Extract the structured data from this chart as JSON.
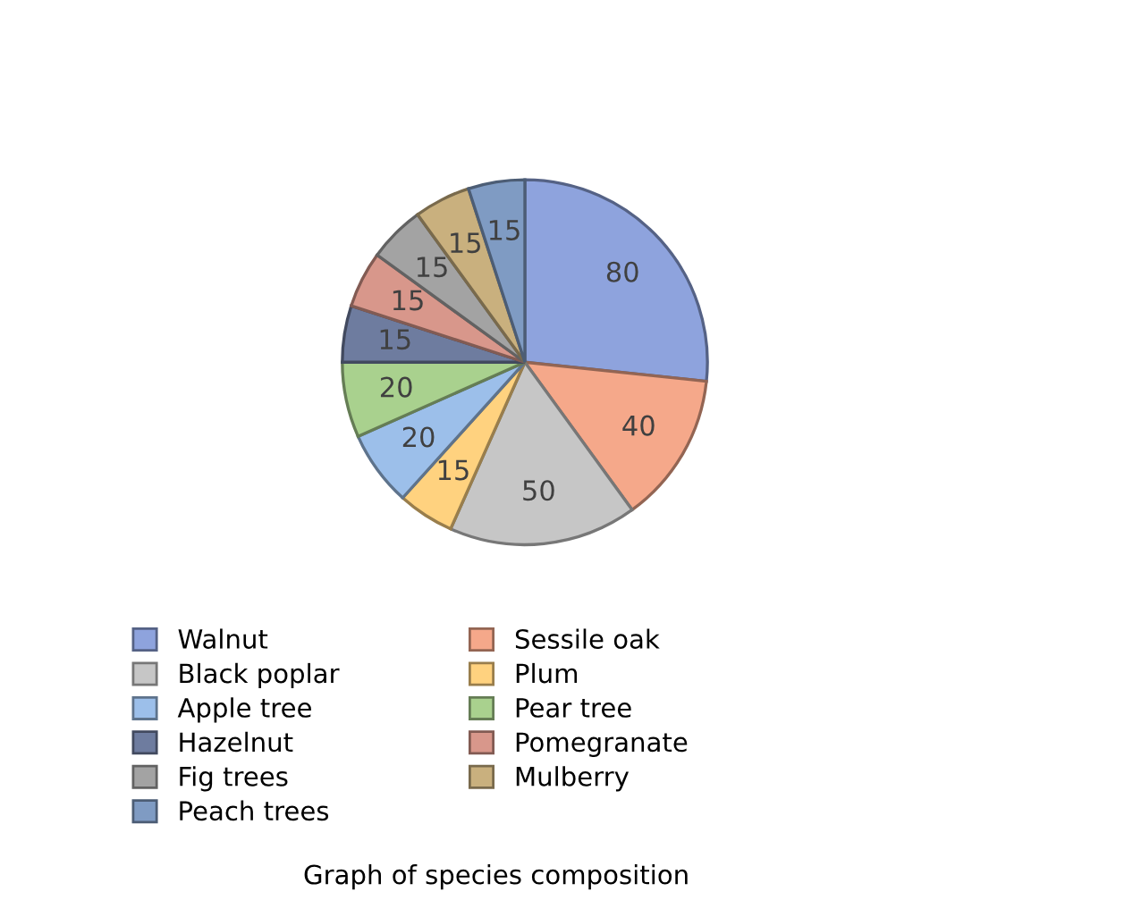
{
  "chart_data": {
    "type": "pie",
    "title": "Graph of species composition",
    "categories": [
      "Walnut",
      "Sessile oak",
      "Black poplar",
      "Plum",
      "Apple tree",
      "Pear tree",
      "Hazelnut",
      "Pomegranate",
      "Fig trees",
      "Mulberry",
      "Peach trees"
    ],
    "values": [
      80,
      40,
      50,
      15,
      20,
      20,
      15,
      15,
      15,
      15,
      15
    ],
    "colors": [
      "#8ea3dd",
      "#f5a88a",
      "#c6c6c6",
      "#ffd27f",
      "#9cbfea",
      "#a9d18e",
      "#6e7c9f",
      "#d8978b",
      "#a3a3a3",
      "#c9b07e",
      "#7f9bc3"
    ],
    "data_labels": true,
    "legend": "bottom"
  }
}
